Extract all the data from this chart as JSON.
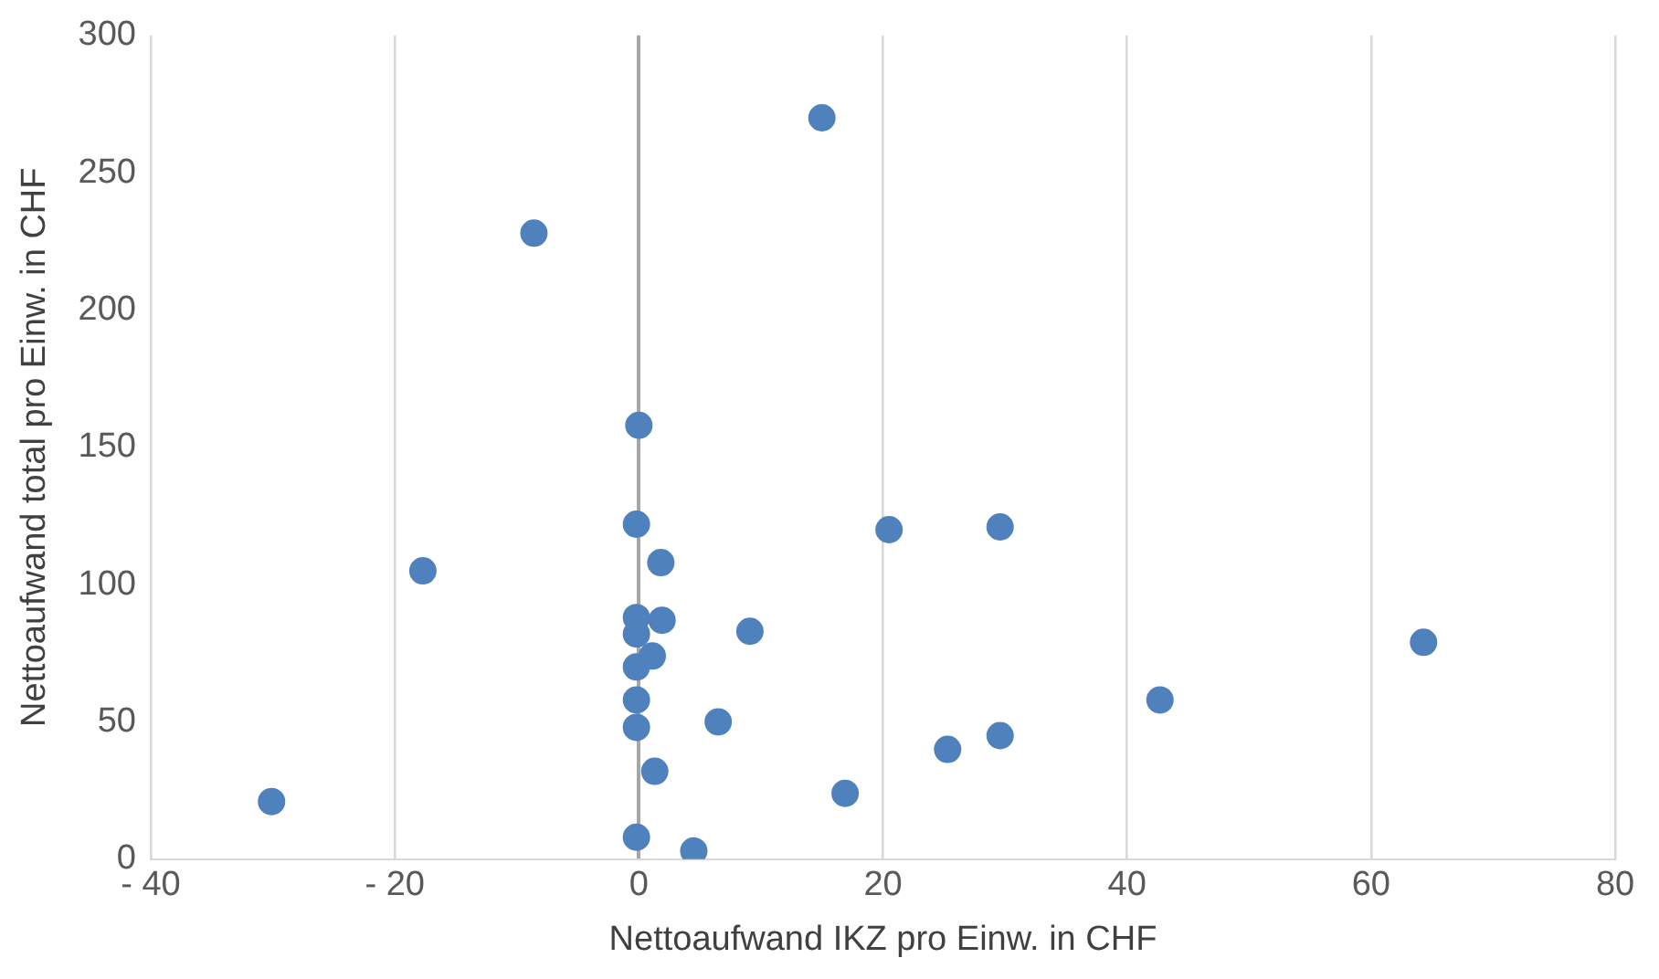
{
  "chart_data": {
    "type": "scatter",
    "xlabel": "Nettoaufwand IKZ pro Einw. in CHF",
    "ylabel": "Nettoaufwand total pro Einw. in CHF",
    "x": [
      15,
      -8.6,
      0,
      -0.2,
      -17.7,
      1.8,
      20.5,
      29.6,
      -0.2,
      1.9,
      -0.2,
      9.1,
      1.1,
      -0.2,
      64.3,
      -0.2,
      42.7,
      -0.2,
      6.5,
      29.6,
      25.3,
      1.3,
      16.9,
      -30.1,
      -0.2,
      4.5
    ],
    "series": [
      {
        "color": "#4f81bd",
        "values": [
          270,
          228,
          158,
          122,
          105,
          108,
          120,
          121,
          88,
          87,
          82,
          83,
          74,
          70,
          79,
          58,
          58,
          48,
          50,
          45,
          40,
          32,
          24,
          21,
          8,
          3
        ]
      }
    ],
    "xlim": [
      -40,
      80
    ],
    "xticks": [
      {
        "value": -40,
        "label": "- 40"
      },
      {
        "value": -20,
        "label": "- 20"
      },
      0,
      20,
      40,
      60,
      80
    ],
    "ylim": [
      0,
      300
    ],
    "yticks": [
      0,
      50,
      100,
      150,
      200,
      250,
      300
    ],
    "grid": "x",
    "legend": false,
    "marker": "circle"
  }
}
